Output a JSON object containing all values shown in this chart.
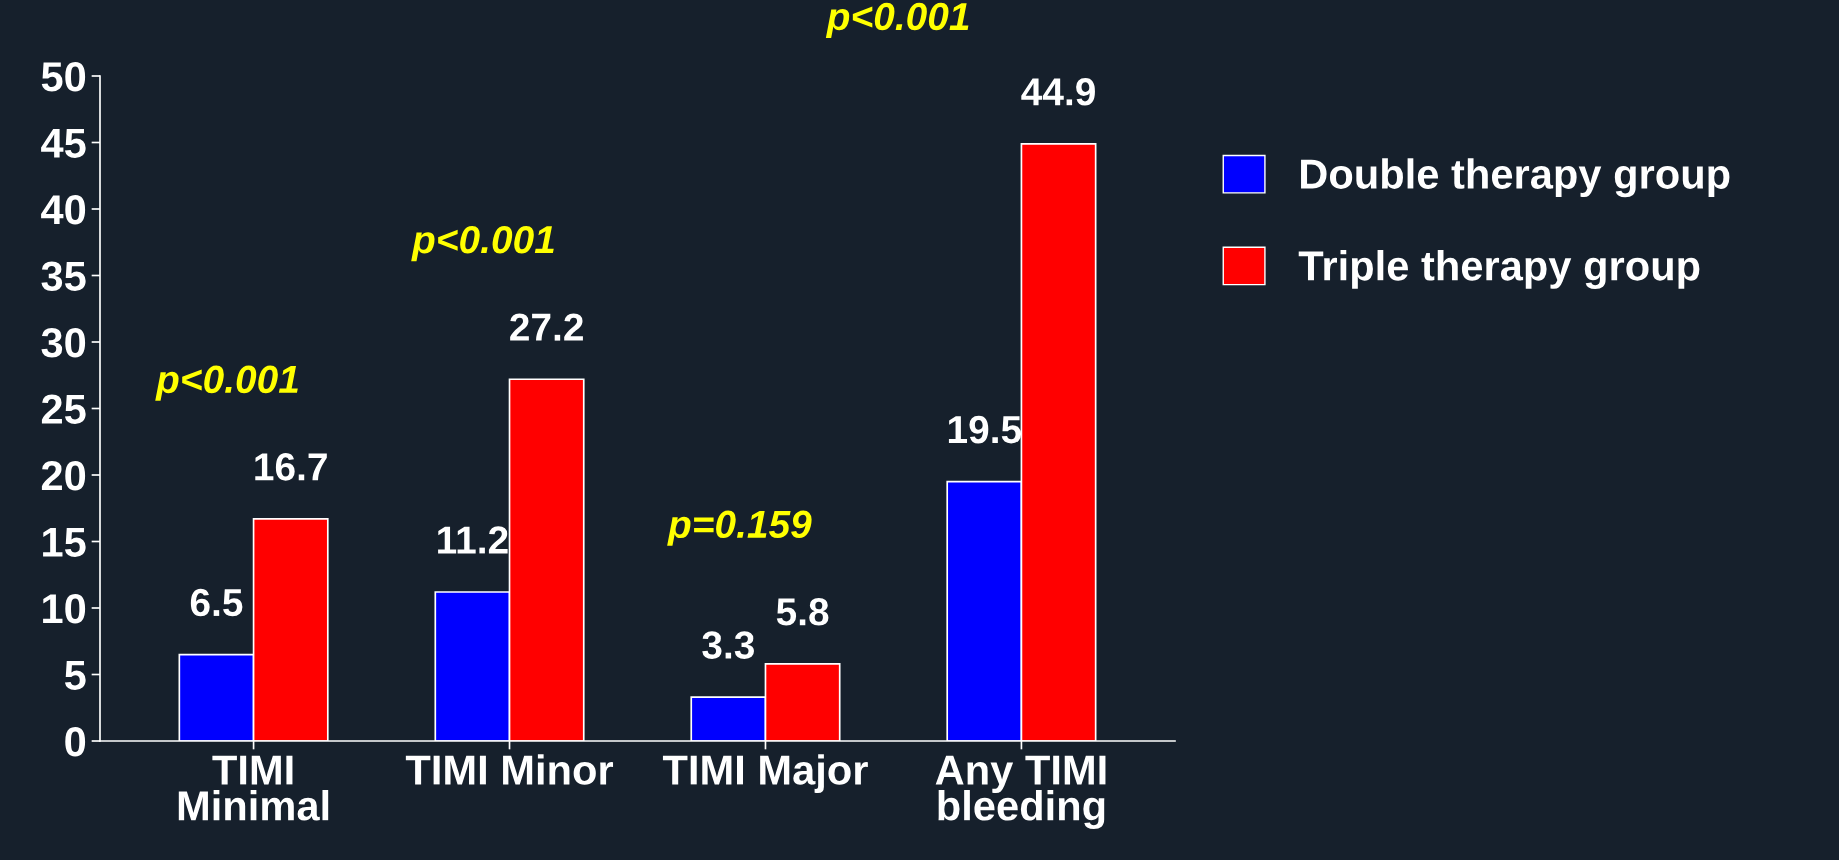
{
  "chart_data": {
    "type": "bar",
    "categories": [
      "TIMI\nMinimal",
      "TIMI Minor",
      "TIMI Major",
      "Any TIMI\nbleeding"
    ],
    "series": [
      {
        "name": "Double therapy group",
        "color": "#0000ff",
        "values": [
          6.5,
          11.2,
          3.3,
          19.5
        ]
      },
      {
        "name": "Triple therapy group",
        "color": "#ff0000",
        "values": [
          16.7,
          27.2,
          5.8,
          44.9
        ]
      }
    ],
    "ylim": [
      0,
      50
    ],
    "yticks": [
      0,
      5,
      10,
      15,
      20,
      25,
      30,
      35,
      40,
      45,
      50
    ],
    "data_labels": true,
    "legend": "right",
    "grid": false,
    "annotations": [
      "p<0.001",
      "p<0.001",
      "p=0.159",
      "p<0.001"
    ]
  }
}
